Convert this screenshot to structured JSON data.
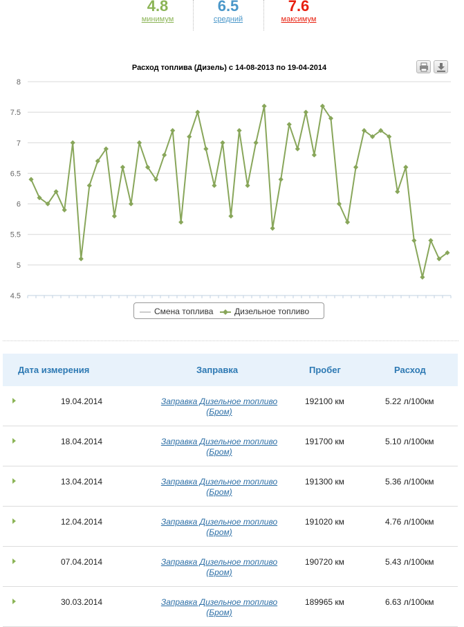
{
  "stats": {
    "min": {
      "value": "4.8",
      "label": "минимум"
    },
    "avg": {
      "value": "6.5",
      "label": "средний"
    },
    "max": {
      "value": "7.6",
      "label": "максимум"
    }
  },
  "colors": {
    "line": "#88a65a",
    "grid": "#d8d8d8",
    "axis": "#c0d0e0",
    "min": "#8bb456",
    "avg": "#4a97c9",
    "max": "#e8200f",
    "header_bg": "#e8f2fb",
    "header_text": "#2d79b3"
  },
  "chart_data": {
    "type": "line",
    "title": "Расход топлива (Дизель) с 14-08-2013 по 19-04-2014",
    "ylim": [
      4.5,
      8
    ],
    "yticks": [
      "8",
      "7.5",
      "7",
      "6.5",
      "6",
      "5.5",
      "5",
      "4.5"
    ],
    "grid": true,
    "legend_position": "bottom",
    "series": [
      {
        "name": "Смена топлива",
        "values": []
      },
      {
        "name": "Дизельное топливо",
        "values": [
          6.4,
          6.1,
          6.0,
          6.2,
          5.9,
          7.0,
          5.1,
          6.3,
          6.7,
          6.9,
          5.8,
          6.6,
          6.0,
          7.0,
          6.6,
          6.4,
          6.8,
          7.2,
          5.7,
          7.1,
          7.5,
          6.9,
          6.3,
          7.0,
          5.8,
          7.2,
          6.3,
          7.0,
          7.6,
          5.6,
          6.4,
          7.3,
          6.9,
          7.5,
          6.8,
          7.6,
          7.4,
          6.0,
          5.7,
          6.6,
          7.2,
          7.1,
          7.2,
          7.1,
          6.2,
          6.6,
          5.4,
          4.8,
          5.4,
          5.1,
          5.2
        ]
      }
    ]
  },
  "chart_ui": {
    "print_icon": "printer-icon",
    "download_icon": "download-icon"
  },
  "table": {
    "headers": {
      "date": "Дата измерения",
      "station": "Заправка",
      "run": "Пробег",
      "consumption": "Расход"
    },
    "rows": [
      {
        "date": "19.04.2014",
        "station_line1": "Заправка Дизельное топливо",
        "station_line2": "(Бром)",
        "run": "192100 км",
        "consumption": "5.22 л/100км"
      },
      {
        "date": "18.04.2014",
        "station_line1": "Заправка Дизельное топливо",
        "station_line2": "(Бром)",
        "run": "191700 км",
        "consumption": "5.10 л/100км"
      },
      {
        "date": "13.04.2014",
        "station_line1": "Заправка Дизельное топливо",
        "station_line2": "(Бром)",
        "run": "191300 км",
        "consumption": "5.36 л/100км"
      },
      {
        "date": "12.04.2014",
        "station_line1": "Заправка Дизельное топливо",
        "station_line2": "(Бром)",
        "run": "191020 км",
        "consumption": "4.76 л/100км"
      },
      {
        "date": "07.04.2014",
        "station_line1": "Заправка Дизельное топливо",
        "station_line2": "(Бром)",
        "run": "190720 км",
        "consumption": "5.43 л/100км"
      },
      {
        "date": "30.03.2014",
        "station_line1": "Заправка Дизельное топливо",
        "station_line2": "(Бром)",
        "run": "189965 км",
        "consumption": "6.63 л/100км"
      }
    ]
  }
}
